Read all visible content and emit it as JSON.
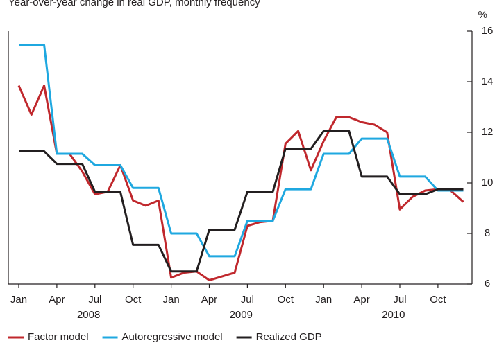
{
  "chart_data": {
    "type": "line",
    "subtitle": "Year-over-year change in real GDP, monthly frequency",
    "y_unit_label": "%",
    "categories": [
      "Jan",
      null,
      null,
      "Apr",
      null,
      null,
      "Jul",
      null,
      null,
      "Oct",
      null,
      null,
      "Jan",
      null,
      null,
      "Apr",
      null,
      null,
      "Jul",
      null,
      null,
      "Oct",
      null,
      null,
      "Jan",
      null,
      null,
      "Apr",
      null,
      null,
      "Jul",
      null,
      null,
      "Oct",
      null,
      null
    ],
    "year_labels": [
      "2008",
      "2009",
      "2010"
    ],
    "ylim": [
      6,
      16
    ],
    "yticks": [
      6,
      8,
      10,
      12,
      14,
      16
    ],
    "y_axis_side": "right",
    "legend": "bottom",
    "series": [
      {
        "name": "Factor model",
        "color": "#c0282d",
        "values": [
          13.85,
          12.7,
          13.85,
          11.15,
          11.15,
          10.45,
          9.55,
          9.65,
          10.7,
          9.3,
          9.1,
          9.3,
          6.25,
          6.45,
          6.5,
          6.15,
          6.3,
          6.45,
          8.3,
          8.45,
          8.5,
          11.55,
          12.05,
          10.5,
          11.65,
          12.6,
          12.6,
          12.4,
          12.3,
          12.0,
          8.95,
          9.45,
          9.7,
          9.75,
          9.7,
          9.25
        ]
      },
      {
        "name": "Autoregressive model",
        "color": "#1fa8e0",
        "values": [
          15.45,
          15.45,
          15.45,
          11.15,
          11.15,
          11.15,
          10.7,
          10.7,
          10.7,
          9.8,
          9.8,
          9.8,
          8.0,
          8.0,
          8.0,
          7.1,
          7.1,
          7.1,
          8.5,
          8.5,
          8.5,
          9.75,
          9.75,
          9.75,
          11.15,
          11.15,
          11.15,
          11.75,
          11.75,
          11.75,
          10.25,
          10.25,
          10.25,
          9.7,
          9.7,
          9.7
        ]
      },
      {
        "name": "Realized GDP",
        "color": "#231f20",
        "values": [
          11.25,
          11.25,
          11.25,
          10.75,
          10.75,
          10.75,
          9.65,
          9.65,
          9.65,
          7.55,
          7.55,
          7.55,
          6.5,
          6.5,
          6.5,
          8.15,
          8.15,
          8.15,
          9.65,
          9.65,
          9.65,
          11.35,
          11.35,
          11.35,
          12.05,
          12.05,
          12.05,
          10.25,
          10.25,
          10.25,
          9.55,
          9.55,
          9.55,
          9.75,
          9.75,
          9.75
        ]
      }
    ]
  }
}
